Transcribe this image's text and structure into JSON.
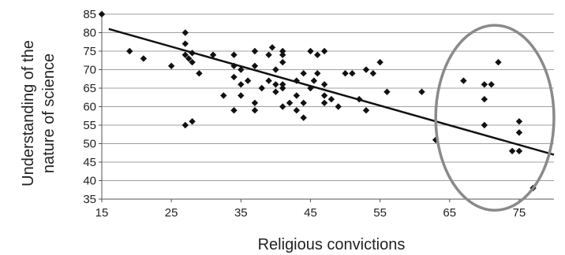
{
  "chart_data": {
    "type": "scatter",
    "xlabel": "Religious convictions",
    "ylabel_lines": [
      "Understanding of the",
      "nature of science"
    ],
    "xlim": [
      15,
      80
    ],
    "ylim": [
      35,
      85
    ],
    "x_ticks": [
      15,
      25,
      35,
      45,
      55,
      65,
      75
    ],
    "y_ticks": [
      35,
      40,
      45,
      50,
      55,
      60,
      65,
      70,
      75,
      80,
      85
    ],
    "grid": "horizontal",
    "trendline": {
      "x": [
        16,
        80
      ],
      "y": [
        81,
        47
      ]
    },
    "highlight_ellipse": {
      "cx": 71.5,
      "cy": 57,
      "rx": 8.5,
      "ry": 25
    },
    "points": [
      {
        "x": 15,
        "y": 85
      },
      {
        "x": 19,
        "y": 75
      },
      {
        "x": 21,
        "y": 73
      },
      {
        "x": 25,
        "y": 71
      },
      {
        "x": 27,
        "y": 80
      },
      {
        "x": 27,
        "y": 77
      },
      {
        "x": 27,
        "y": 74
      },
      {
        "x": 27.5,
        "y": 73
      },
      {
        "x": 28,
        "y": 74.5
      },
      {
        "x": 28,
        "y": 72
      },
      {
        "x": 29,
        "y": 69
      },
      {
        "x": 31,
        "y": 74
      },
      {
        "x": 27,
        "y": 55
      },
      {
        "x": 28,
        "y": 56
      },
      {
        "x": 32.5,
        "y": 63
      },
      {
        "x": 34,
        "y": 74
      },
      {
        "x": 34,
        "y": 71
      },
      {
        "x": 34,
        "y": 68
      },
      {
        "x": 34,
        "y": 59
      },
      {
        "x": 35,
        "y": 66
      },
      {
        "x": 35,
        "y": 63
      },
      {
        "x": 35,
        "y": 70
      },
      {
        "x": 36,
        "y": 67
      },
      {
        "x": 37,
        "y": 75
      },
      {
        "x": 37,
        "y": 71
      },
      {
        "x": 37,
        "y": 61
      },
      {
        "x": 37,
        "y": 59
      },
      {
        "x": 38,
        "y": 65
      },
      {
        "x": 39,
        "y": 74
      },
      {
        "x": 39,
        "y": 67
      },
      {
        "x": 39.5,
        "y": 76
      },
      {
        "x": 40,
        "y": 66
      },
      {
        "x": 40,
        "y": 70
      },
      {
        "x": 40,
        "y": 64
      },
      {
        "x": 41,
        "y": 75
      },
      {
        "x": 41,
        "y": 74
      },
      {
        "x": 41,
        "y": 72
      },
      {
        "x": 41,
        "y": 66
      },
      {
        "x": 41,
        "y": 65
      },
      {
        "x": 41,
        "y": 60
      },
      {
        "x": 42,
        "y": 61
      },
      {
        "x": 43,
        "y": 67
      },
      {
        "x": 43,
        "y": 63
      },
      {
        "x": 43,
        "y": 59
      },
      {
        "x": 44,
        "y": 69
      },
      {
        "x": 44,
        "y": 61
      },
      {
        "x": 44,
        "y": 57
      },
      {
        "x": 45,
        "y": 75
      },
      {
        "x": 45,
        "y": 65
      },
      {
        "x": 45.5,
        "y": 67
      },
      {
        "x": 46,
        "y": 74
      },
      {
        "x": 46,
        "y": 69
      },
      {
        "x": 47,
        "y": 75
      },
      {
        "x": 47,
        "y": 66
      },
      {
        "x": 47,
        "y": 63
      },
      {
        "x": 47,
        "y": 61
      },
      {
        "x": 48,
        "y": 62
      },
      {
        "x": 49,
        "y": 60
      },
      {
        "x": 50,
        "y": 69
      },
      {
        "x": 51,
        "y": 69
      },
      {
        "x": 52,
        "y": 62
      },
      {
        "x": 53,
        "y": 59
      },
      {
        "x": 53,
        "y": 70
      },
      {
        "x": 54,
        "y": 69
      },
      {
        "x": 55,
        "y": 72
      },
      {
        "x": 56,
        "y": 64
      },
      {
        "x": 61,
        "y": 64
      },
      {
        "x": 63,
        "y": 51
      },
      {
        "x": 67,
        "y": 67
      },
      {
        "x": 70,
        "y": 66
      },
      {
        "x": 70,
        "y": 62
      },
      {
        "x": 70,
        "y": 55
      },
      {
        "x": 71,
        "y": 66
      },
      {
        "x": 72,
        "y": 72
      },
      {
        "x": 74,
        "y": 48
      },
      {
        "x": 75,
        "y": 56
      },
      {
        "x": 75,
        "y": 53
      },
      {
        "x": 75,
        "y": 48
      },
      {
        "x": 77,
        "y": 38
      }
    ]
  }
}
